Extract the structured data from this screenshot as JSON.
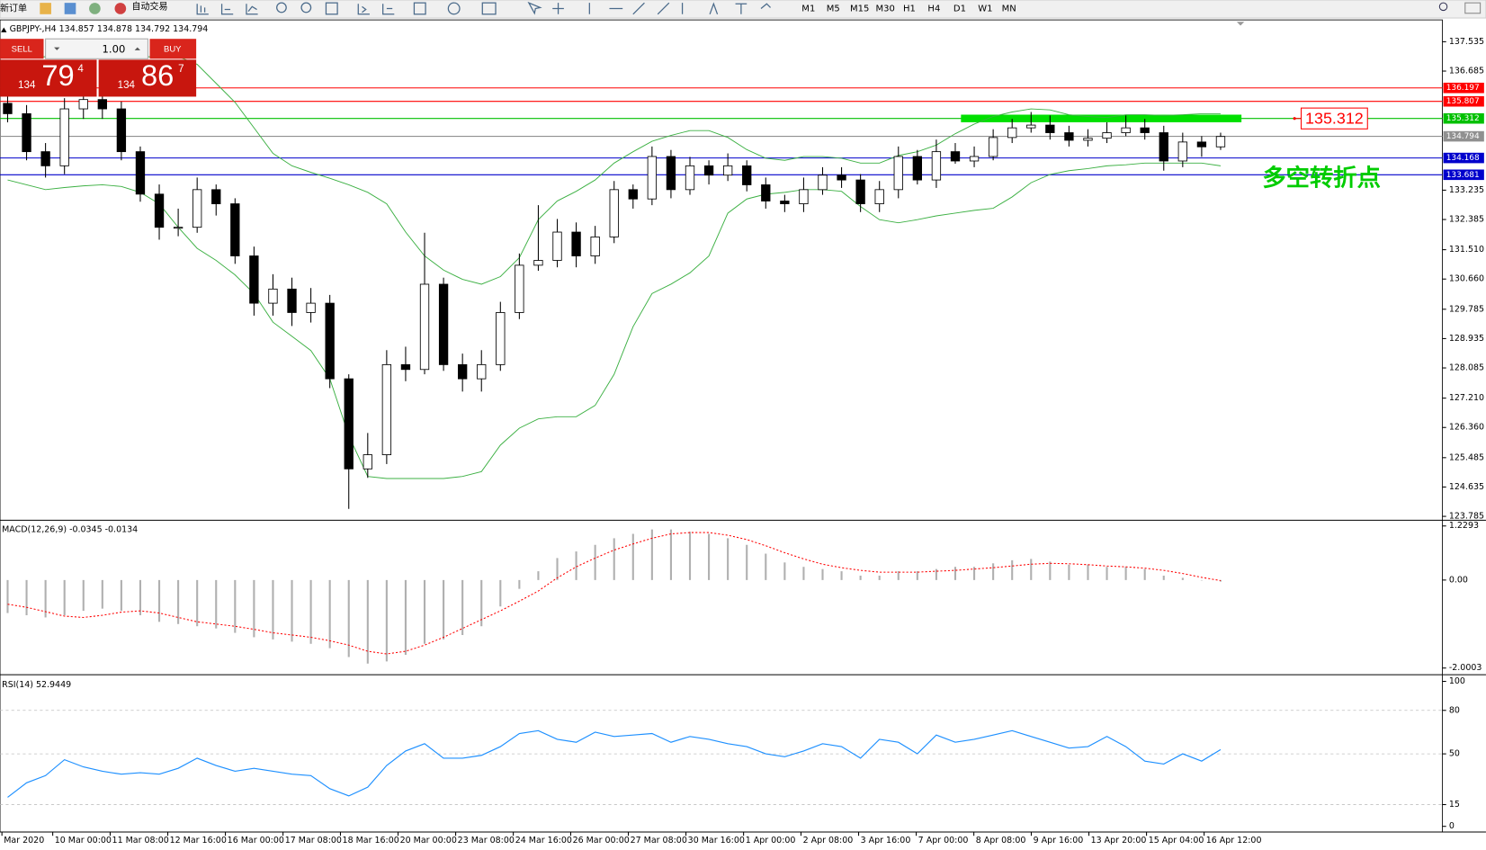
{
  "toolbar": {
    "new_order": "新订单",
    "auto_trade": "自动交易",
    "timeframes": [
      "M1",
      "M5",
      "M15",
      "M30",
      "H1",
      "H4",
      "D1",
      "W1",
      "MN"
    ]
  },
  "trade_panel": {
    "sell": "SELL",
    "buy": "BUY",
    "lots": "1.00",
    "sell_price": {
      "figure": "134",
      "pips": "79",
      "point": "4"
    },
    "buy_price": {
      "figure": "134",
      "pips": "86",
      "point": "7"
    }
  },
  "chart_data": [
    {
      "type": "candlestick",
      "title": "GBPJPY-,H4 134.857 134.878 134.792 134.794",
      "xlim": [
        -0.4,
        75.7
      ],
      "ylim": [
        123.7,
        138.14
      ],
      "yticks": [
        137.535,
        136.685,
        133.235,
        132.385,
        {
          "value": 131.51,
          "label": "131.510"
        },
        {
          "value": 130.66,
          "label": "130.660"
        },
        129.785,
        128.935,
        128.085,
        {
          "value": 127.21,
          "label": "127.210"
        },
        {
          "value": 126.36,
          "label": "126.360"
        },
        125.485,
        124.635,
        123.785
      ],
      "open": [
        135.75,
        135.45,
        134.35,
        133.94,
        135.59,
        135.86,
        135.59,
        134.35,
        133.12,
        132.16,
        132.16,
        133.25,
        132.84,
        131.33,
        129.96,
        130.37,
        129.69,
        129.96,
        127.77,
        125.16,
        125.57,
        128.18,
        128.04,
        130.51,
        128.18,
        127.77,
        128.18,
        129.69,
        131.06,
        131.2,
        132.02,
        131.33,
        131.88,
        133.25,
        132.98,
        134.21,
        133.25,
        133.94,
        133.67,
        133.94,
        133.39,
        132.92,
        132.84,
        133.25,
        133.67,
        133.53,
        132.84,
        133.25,
        134.21,
        133.53,
        134.35,
        134.08,
        134.21,
        134.76,
        135.04,
        135.12,
        134.9,
        134.68,
        134.74,
        134.9,
        135.04,
        134.9,
        134.08,
        134.63,
        134.49
      ],
      "high": [
        136.1,
        135.7,
        134.6,
        135.9,
        136.2,
        136.1,
        135.8,
        134.5,
        133.4,
        132.7,
        133.6,
        133.4,
        133.0,
        131.6,
        130.8,
        130.7,
        130.4,
        130.2,
        127.9,
        126.2,
        128.6,
        128.7,
        132.0,
        130.7,
        128.5,
        128.6,
        130.0,
        131.4,
        132.8,
        132.4,
        132.3,
        132.2,
        133.5,
        133.4,
        134.5,
        134.4,
        134.2,
        134.1,
        134.3,
        134.1,
        133.6,
        133.1,
        133.6,
        133.9,
        133.9,
        133.7,
        133.5,
        134.5,
        134.4,
        134.7,
        134.6,
        134.5,
        135.0,
        135.3,
        135.5,
        135.4,
        135.1,
        135.0,
        135.2,
        135.4,
        135.3,
        135.1,
        134.9,
        134.8,
        134.9
      ],
      "low": [
        135.2,
        134.1,
        133.6,
        133.7,
        135.3,
        135.3,
        134.1,
        132.9,
        131.8,
        131.9,
        132.0,
        132.5,
        131.1,
        129.6,
        129.6,
        129.3,
        129.4,
        127.5,
        124.0,
        124.9,
        125.3,
        127.7,
        127.9,
        128.0,
        127.4,
        127.4,
        128.0,
        129.5,
        130.9,
        131.0,
        131.0,
        131.1,
        131.7,
        132.7,
        132.8,
        133.0,
        133.1,
        133.4,
        133.5,
        133.2,
        132.7,
        132.6,
        132.6,
        133.1,
        133.3,
        132.6,
        132.6,
        133.0,
        133.4,
        133.3,
        134.0,
        133.9,
        134.1,
        134.6,
        134.9,
        134.7,
        134.5,
        134.5,
        134.6,
        134.8,
        134.7,
        133.8,
        133.9,
        134.2,
        134.4
      ],
      "close": [
        135.45,
        134.35,
        133.94,
        135.59,
        135.86,
        135.59,
        134.35,
        133.12,
        132.16,
        132.16,
        133.25,
        132.84,
        131.33,
        129.96,
        130.37,
        129.69,
        129.96,
        127.77,
        125.16,
        125.57,
        128.18,
        128.04,
        130.51,
        128.18,
        127.77,
        128.18,
        129.69,
        131.06,
        131.2,
        132.02,
        131.33,
        131.88,
        133.25,
        132.98,
        134.21,
        133.25,
        133.94,
        133.67,
        133.94,
        133.39,
        132.92,
        132.84,
        133.25,
        133.67,
        133.53,
        132.84,
        133.25,
        134.21,
        133.53,
        134.35,
        134.08,
        134.21,
        134.76,
        135.04,
        135.12,
        134.9,
        134.68,
        134.74,
        134.9,
        135.04,
        134.9,
        134.08,
        134.63,
        134.49,
        134.79
      ],
      "series": [
        {
          "color": "#3cb043",
          "values": [
            137.1,
            137.1,
            137.1,
            137.1,
            137.1,
            137.1,
            137.1,
            137.1,
            137.1,
            137.1,
            136.88,
            136.33,
            135.78,
            135.04,
            134.3,
            133.94,
            133.75,
            133.58,
            133.39,
            133.17,
            132.84,
            132.02,
            131.33,
            130.92,
            130.65,
            130.51,
            130.73,
            131.28,
            132.38,
            132.92,
            133.2,
            133.53,
            134.02,
            134.35,
            134.65,
            134.82,
            134.96,
            134.96,
            134.76,
            134.41,
            134.16,
            134.1,
            134.21,
            134.21,
            134.16,
            134.02,
            134.02,
            134.24,
            134.35,
            134.54,
            134.87,
            135.15,
            135.37,
            135.5,
            135.59,
            135.56,
            135.42,
            135.37,
            135.34,
            135.42,
            135.42,
            135.4,
            135.42,
            135.45,
            135.45
          ]
        },
        {
          "color": "#3cb043",
          "values": [
            133.53,
            133.39,
            133.25,
            133.31,
            133.36,
            133.39,
            133.34,
            133.17,
            132.84,
            132.16,
            131.55,
            131.2,
            130.78,
            130.24,
            129.41,
            129.0,
            128.59,
            127.77,
            126.12,
            124.94,
            124.88,
            124.88,
            124.88,
            124.88,
            124.94,
            125.08,
            125.85,
            126.34,
            126.61,
            126.67,
            126.67,
            127.0,
            127.9,
            129.28,
            130.24,
            130.51,
            130.84,
            131.33,
            132.57,
            132.98,
            133.12,
            133.17,
            133.25,
            133.25,
            133.2,
            132.76,
            132.38,
            132.29,
            132.38,
            132.49,
            132.57,
            132.65,
            132.71,
            133.04,
            133.45,
            133.69,
            133.8,
            133.86,
            133.94,
            133.97,
            134.02,
            134.02,
            134.02,
            134.02,
            133.94
          ]
        }
      ],
      "levels": [
        {
          "value": 136.197,
          "color": "#ff0000"
        },
        {
          "value": 135.807,
          "color": "#ff0000"
        },
        {
          "value": 135.312,
          "color": "#00c000",
          "span": [
            50.3,
            65.1
          ]
        },
        {
          "value": 134.794,
          "color": "#909090"
        },
        {
          "value": 134.168,
          "color": "#0000cc"
        },
        {
          "value": 133.681,
          "color": "#0000cc"
        }
      ],
      "annotations": [
        {
          "text": "多空转折点",
          "color": "#00cc00"
        }
      ]
    },
    {
      "type": "macd",
      "title": "MACD(12,26,9) -0.0345 -0.0134",
      "xlim": [
        -0.4,
        75.7
      ],
      "ylim": [
        -2.13,
        1.338
      ],
      "yticks": [
        1.2293,
        {
          "value": 0,
          "label": "0.00"
        },
        -2.0003
      ],
      "series": [
        {
          "color": "#b0b0b0",
          "values": [
            -0.75,
            -0.8,
            -0.85,
            -0.8,
            -0.7,
            -0.65,
            -0.7,
            -0.8,
            -0.95,
            -1.0,
            -1.05,
            -1.1,
            -1.2,
            -1.3,
            -1.35,
            -1.4,
            -1.45,
            -1.55,
            -1.75,
            -1.9,
            -1.85,
            -1.7,
            -1.45,
            -1.35,
            -1.25,
            -1.05,
            -0.6,
            -0.2,
            0.2,
            0.5,
            0.65,
            0.8,
            0.95,
            1.05,
            1.15,
            1.15,
            1.1,
            1.05,
            0.95,
            0.8,
            0.6,
            0.4,
            0.3,
            0.25,
            0.2,
            0.1,
            0.1,
            0.2,
            0.2,
            0.25,
            0.3,
            0.3,
            0.38,
            0.45,
            0.48,
            0.42,
            0.35,
            0.35,
            0.3,
            0.3,
            0.25,
            0.1,
            0.05,
            -0.01,
            -0.0345
          ]
        },
        {
          "color": "#ff0000",
          "values": [
            -0.55,
            -0.62,
            -0.72,
            -0.82,
            -0.85,
            -0.8,
            -0.73,
            -0.7,
            -0.75,
            -0.85,
            -0.95,
            -1.0,
            -1.05,
            -1.12,
            -1.2,
            -1.25,
            -1.3,
            -1.38,
            -1.48,
            -1.62,
            -1.68,
            -1.62,
            -1.48,
            -1.3,
            -1.1,
            -0.9,
            -0.7,
            -0.48,
            -0.25,
            0.05,
            0.3,
            0.5,
            0.68,
            0.82,
            0.95,
            1.05,
            1.08,
            1.08,
            1.02,
            0.92,
            0.78,
            0.62,
            0.48,
            0.36,
            0.28,
            0.22,
            0.18,
            0.18,
            0.18,
            0.2,
            0.22,
            0.25,
            0.28,
            0.32,
            0.36,
            0.38,
            0.37,
            0.35,
            0.32,
            0.3,
            0.27,
            0.22,
            0.15,
            0.06,
            -0.0134
          ]
        }
      ]
    },
    {
      "type": "line",
      "title": "RSI(14) 52.9449",
      "xlim": [
        -0.4,
        75.7
      ],
      "ylim": [
        -3.9,
        103.3
      ],
      "yticks": [
        100,
        80,
        50,
        15,
        0
      ],
      "levels": [
        {
          "value": 80,
          "color": "#c0c0c0"
        },
        {
          "value": 50,
          "color": "#c0c0c0"
        },
        {
          "value": 15,
          "color": "#c0c0c0"
        }
      ],
      "color": "#1e90ff",
      "values": [
        20,
        30,
        35,
        46,
        41,
        38,
        36,
        37,
        36,
        40,
        47,
        42,
        38,
        40,
        38,
        36,
        35,
        26,
        21,
        27,
        42,
        52,
        57,
        47,
        47,
        49,
        55,
        64,
        66,
        60,
        58,
        65,
        62,
        63,
        64,
        58,
        62,
        60,
        57,
        55,
        50,
        48,
        52,
        57,
        55,
        47,
        60,
        58,
        50,
        63,
        58,
        60,
        63,
        66,
        62,
        58,
        54,
        55,
        62,
        55,
        45,
        43,
        50,
        45,
        52.9449
      ],
      "xticks": [
        {
          "value": -0.3,
          "label": "Mar 2020"
        },
        {
          "value": 2.38,
          "label": "10 Mar 00:00"
        },
        {
          "value": 5.41,
          "label": "11 Mar 08:00"
        },
        {
          "value": 8.45,
          "label": "12 Mar 16:00"
        },
        {
          "value": 11.49,
          "label": "16 Mar 00:00"
        },
        {
          "value": 14.53,
          "label": "17 Mar 08:00"
        },
        {
          "value": 17.56,
          "label": "18 Mar 16:00"
        },
        {
          "value": 20.6,
          "label": "20 Mar 00:00"
        },
        {
          "value": 23.64,
          "label": "23 Mar 08:00"
        },
        {
          "value": 26.68,
          "label": "24 Mar 16:00"
        },
        {
          "value": 29.71,
          "label": "26 Mar 00:00"
        },
        {
          "value": 32.75,
          "label": "27 Mar 08:00"
        },
        {
          "value": 35.79,
          "label": "30 Mar 16:00"
        },
        {
          "value": 38.83,
          "label": "1 Apr 00:00"
        },
        {
          "value": 41.86,
          "label": "2 Apr 08:00"
        },
        {
          "value": 44.9,
          "label": "3 Apr 16:00"
        },
        {
          "value": 47.94,
          "label": "7 Apr 00:00"
        },
        {
          "value": 50.98,
          "label": "8 Apr 08:00"
        },
        {
          "value": 54.01,
          "label": "9 Apr 16:00"
        },
        {
          "value": 57.05,
          "label": "13 Apr 20:00"
        },
        {
          "value": 60.09,
          "label": "15 Apr 04:00"
        },
        {
          "value": 63.13,
          "label": "16 Apr 12:00"
        }
      ]
    }
  ]
}
